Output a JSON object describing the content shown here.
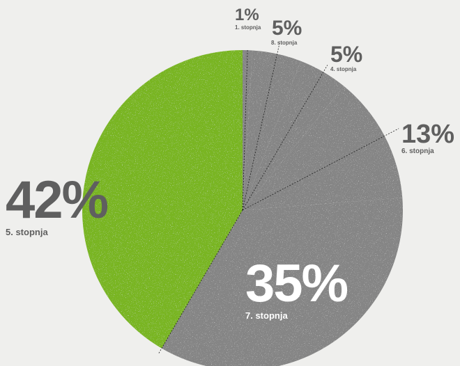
{
  "chart_data": {
    "type": "pie",
    "title": "",
    "slices": [
      {
        "label": "1. stopnja",
        "value": 1,
        "display": "1%",
        "color": "#858585"
      },
      {
        "label": "8. stopnja",
        "value": 5,
        "display": "5%",
        "color": "#858585"
      },
      {
        "label": "4. stopnja",
        "value": 5,
        "display": "5%",
        "color": "#858585"
      },
      {
        "label": "6. stopnja",
        "value": 13,
        "display": "13%",
        "color": "#858585"
      },
      {
        "label": "7. stopnja",
        "value": 35,
        "display": "35%",
        "color": "#858585"
      },
      {
        "label": "5. stopnja",
        "value": 42,
        "display": "42%",
        "color": "#79b524"
      }
    ],
    "legend": "none",
    "label_style": "outside with dashed leader lines"
  },
  "colors": {
    "background": "#efefed",
    "gray_slice": "#858585",
    "green_slice": "#79b524",
    "label_text": "#5f5f5f",
    "inner_label_text": "#ffffff"
  }
}
